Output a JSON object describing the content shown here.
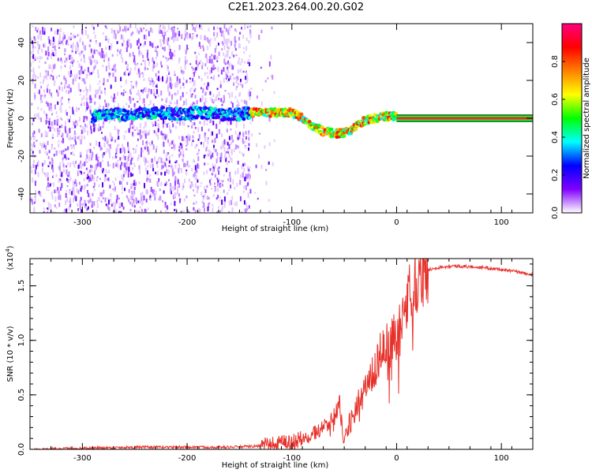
{
  "title": "C2E1.2023.264.00.20.G02",
  "chart_data": [
    {
      "type": "heatmap",
      "xlabel": "Height of straight line (km)",
      "ylabel": "Frequency (Hz)",
      "xlim": [
        -350,
        130
      ],
      "ylim": [
        -50,
        50
      ],
      "xticks": [
        -300,
        -200,
        -100,
        0,
        100
      ],
      "xtick_labels": [
        "-300",
        "-200",
        "-100",
        "0",
        "100"
      ],
      "yticks": [
        -40,
        -20,
        0,
        20,
        40
      ],
      "ytick_labels": [
        "-40",
        "-20",
        "0",
        "20",
        "40"
      ],
      "colorbar": {
        "label": "Normalized spectral amplitude",
        "range": [
          0,
          1
        ],
        "ticks": [
          0.0,
          0.2,
          0.4,
          0.6,
          0.8
        ],
        "tick_labels": [
          "0.0",
          "0.2",
          "0.4",
          "0.6",
          "0.8"
        ],
        "colormap": [
          "#ffffff",
          "#8000ff",
          "#0000ff",
          "#00ffff",
          "#00ff00",
          "#ffff00",
          "#ff8000",
          "#ff0000",
          "#ff0080"
        ]
      },
      "noise_region_x": [
        -350,
        -140
      ],
      "carrier_trace": {
        "x": [
          -290,
          -270,
          -250,
          -230,
          -210,
          -190,
          -170,
          -150,
          -140,
          -130,
          -120,
          -110,
          -100,
          -90,
          -80,
          -70,
          -60,
          -50,
          -40,
          -30,
          -20,
          -10,
          0,
          50,
          130
        ],
        "y": [
          1,
          2,
          2,
          3,
          2,
          3,
          2,
          2,
          3,
          3,
          3,
          3,
          3,
          0,
          -4,
          -7,
          -8,
          -8,
          -5,
          -1,
          0,
          1,
          1,
          0,
          0
        ]
      },
      "grid": false
    },
    {
      "type": "line",
      "xlabel": "Height of straight line (km)",
      "ylabel": "SNR (10 * v/v)",
      "yscale_label": "(x10",
      "yscale_exp": "4",
      "xlim": [
        -350,
        130
      ],
      "ylim": [
        0,
        1.75
      ],
      "xticks": [
        -300,
        -200,
        -100,
        0,
        100
      ],
      "xtick_labels": [
        "-300",
        "-200",
        "-100",
        "0",
        "100"
      ],
      "yticks": [
        0.0,
        0.5,
        1.0,
        1.5
      ],
      "ytick_labels": [
        "0.0",
        "0.5",
        "1.0",
        "1.5"
      ],
      "series": [
        {
          "color": "#e8302a",
          "x": [
            -350,
            -300,
            -250,
            -200,
            -160,
            -130,
            -110,
            -100,
            -90,
            -80,
            -70,
            -60,
            -55,
            -50,
            -45,
            -40,
            -35,
            -30,
            -25,
            -20,
            -15,
            -10,
            -5,
            0,
            5,
            10,
            15,
            20,
            25,
            30,
            40,
            50,
            60,
            80,
            100,
            120,
            130
          ],
          "y": [
            0.0,
            0.01,
            0.02,
            0.02,
            0.02,
            0.03,
            0.05,
            0.07,
            0.1,
            0.15,
            0.2,
            0.3,
            0.45,
            0.05,
            0.25,
            0.35,
            0.5,
            0.6,
            0.65,
            0.75,
            0.9,
            0.95,
            1.0,
            1.05,
            1.2,
            1.35,
            1.5,
            1.58,
            1.62,
            1.65,
            1.67,
            1.68,
            1.68,
            1.67,
            1.65,
            1.62,
            1.6
          ]
        }
      ],
      "grid": false
    }
  ]
}
